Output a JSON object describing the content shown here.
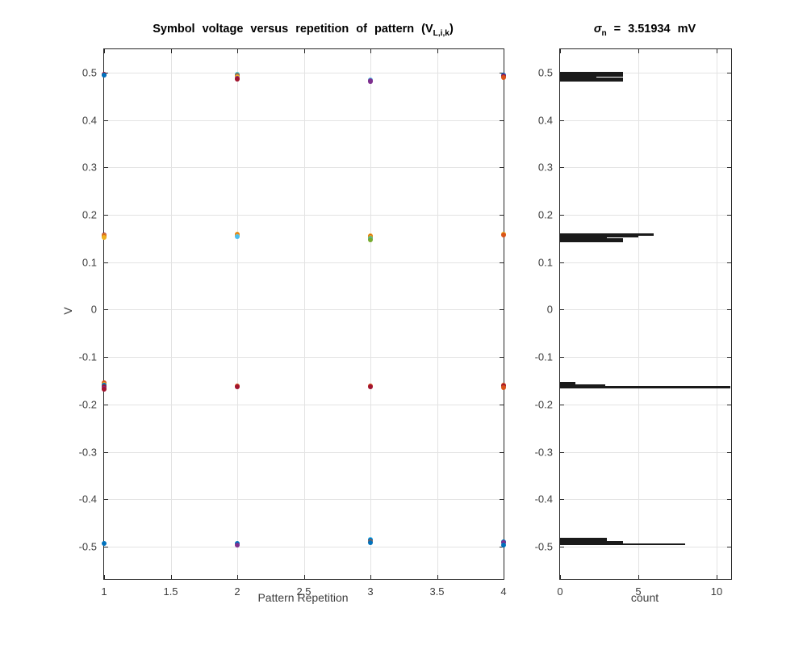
{
  "figure": {
    "background": "#ffffff",
    "colors": {
      "axis": "#262626",
      "grid": "#e3e3e3",
      "tick_label": "#3d3d3d",
      "title": "#000000",
      "histogram_fill": "#1a1a1a"
    }
  },
  "left_plot": {
    "title_pre": "Symbol voltage versus repetition of pattern (V",
    "title_sub": "L,i,k",
    "title_post": ")",
    "xlabel": "Pattern Repetition",
    "ylabel": "V"
  },
  "right_plot": {
    "title_sigma": "σ",
    "title_sub": "n",
    "title_rest": " = 3.51934 mV",
    "xlabel": "count"
  },
  "chart_data": [
    {
      "type": "scatter",
      "title": "Symbol voltage versus repetition of pattern (V_L,i,k)",
      "xlabel": "Pattern Repetition",
      "ylabel": "V",
      "xlim": [
        1,
        4
      ],
      "ylim": [
        -0.568,
        0.549
      ],
      "xticks": [
        1,
        1.5,
        2,
        2.5,
        3,
        3.5,
        4
      ],
      "yticks": [
        -0.5,
        -0.4,
        -0.3,
        -0.2,
        -0.1,
        0,
        0.1,
        0.2,
        0.3,
        0.4,
        0.5
      ],
      "grid": true,
      "legend": "none",
      "points": [
        [
          1,
          0.496,
          "#A2142F"
        ],
        [
          1,
          0.495,
          "#7E2F8E"
        ],
        [
          1,
          0.4938,
          "#0072BD"
        ],
        [
          2,
          0.4958,
          "#4DBEEE"
        ],
        [
          2,
          0.494,
          "#77AC30"
        ],
        [
          2,
          0.4922,
          "#7E2F8E"
        ],
        [
          2,
          0.4903,
          "#EDB120"
        ],
        [
          2,
          0.488,
          "#7E2F8E"
        ],
        [
          2,
          0.486,
          "#A2142F"
        ],
        [
          3,
          0.4838,
          "#4DBEEE"
        ],
        [
          3,
          0.482,
          "#7E2F8E"
        ],
        [
          3,
          0.4806,
          "#7E2F8E"
        ],
        [
          4,
          0.4952,
          "#0072BD"
        ],
        [
          4,
          0.4934,
          "#7E2F8E"
        ],
        [
          4,
          0.4915,
          "#A2142F"
        ],
        [
          4,
          0.49,
          "#D95319"
        ],
        [
          1,
          0.1572,
          "#A2142F"
        ],
        [
          1,
          0.1556,
          "#EDB120"
        ],
        [
          1,
          0.154,
          "#D95319"
        ],
        [
          1,
          0.1524,
          "#EDB120"
        ],
        [
          2,
          0.1592,
          "#EDB120"
        ],
        [
          2,
          0.1576,
          "#D95319"
        ],
        [
          2,
          0.156,
          "#EDB120"
        ],
        [
          2,
          0.1542,
          "#4DBEEE"
        ],
        [
          3,
          0.1556,
          "#EDB120"
        ],
        [
          3,
          0.154,
          "#D95319"
        ],
        [
          3,
          0.1524,
          "#EDB120"
        ],
        [
          3,
          0.1506,
          "#77AC30"
        ],
        [
          3,
          0.1488,
          "#4DBEEE"
        ],
        [
          3,
          0.1472,
          "#77AC30"
        ],
        [
          4,
          0.1592,
          "#EDB120"
        ],
        [
          4,
          0.1578,
          "#D95319"
        ],
        [
          1,
          -0.1546,
          "#D95319"
        ],
        [
          1,
          -0.1572,
          "#EDB120"
        ],
        [
          1,
          -0.1598,
          "#0072BD"
        ],
        [
          1,
          -0.1626,
          "#A2142F"
        ],
        [
          1,
          -0.1654,
          "#7E2F8E"
        ],
        [
          1,
          -0.1684,
          "#A2142F"
        ],
        [
          2,
          -0.1606,
          "#D95319"
        ],
        [
          2,
          -0.1626,
          "#A2142F"
        ],
        [
          3,
          -0.161,
          "#D95319"
        ],
        [
          3,
          -0.1632,
          "#A2142F"
        ],
        [
          4,
          -0.159,
          "#D95319"
        ],
        [
          4,
          -0.1616,
          "#A2142F"
        ],
        [
          4,
          -0.1642,
          "#D95319"
        ],
        [
          1,
          -0.493,
          "#0072BD"
        ],
        [
          2,
          -0.4936,
          "#0072BD"
        ],
        [
          2,
          -0.4958,
          "#7E2F8E"
        ],
        [
          3,
          -0.4846,
          "#4DBEEE"
        ],
        [
          3,
          -0.4866,
          "#0072BD"
        ],
        [
          3,
          -0.489,
          "#D95319"
        ],
        [
          3,
          -0.4912,
          "#0072BD"
        ],
        [
          4,
          -0.4892,
          "#0072BD"
        ],
        [
          4,
          -0.4916,
          "#7E2F8E"
        ],
        [
          4,
          -0.4968,
          "#0072BD"
        ]
      ]
    },
    {
      "type": "bar",
      "orientation": "horizontal",
      "title": "σ_n = 3.51934 mV",
      "xlabel": "count",
      "ylabel": "",
      "xlim": [
        0,
        10.93
      ],
      "ylim": [
        -0.568,
        0.549
      ],
      "xticks": [
        0,
        5,
        10
      ],
      "yticks": [
        -0.5,
        -0.4,
        -0.3,
        -0.2,
        -0.1,
        0,
        0.1,
        0.2,
        0.3,
        0.4,
        0.5
      ],
      "grid": true,
      "legend": "none",
      "bars": [
        {
          "v": 0.4962,
          "h": 0.0048,
          "count": 4
        },
        {
          "v": 0.4908,
          "h": 0.0078,
          "count": 2.3
        },
        {
          "v": 0.4852,
          "h": 0.004,
          "count": 4
        },
        {
          "v": 0.1582,
          "h": 0.002,
          "count": 6
        },
        {
          "v": 0.1566,
          "h": 0.004,
          "count": 5
        },
        {
          "v": 0.1528,
          "h": 0.008,
          "count": 3
        },
        {
          "v": 0.1468,
          "h": 0.004,
          "count": 4
        },
        {
          "v": -0.1576,
          "h": 0.005,
          "count": 1
        },
        {
          "v": -0.161,
          "h": 0.004,
          "count": 2.9
        },
        {
          "v": -0.1636,
          "h": 0.0018,
          "count": 10.9
        },
        {
          "v": -0.4866,
          "h": 0.006,
          "count": 3
        },
        {
          "v": -0.4914,
          "h": 0.0036,
          "count": 4
        },
        {
          "v": -0.4944,
          "h": 0.0018,
          "count": 8
        }
      ]
    }
  ]
}
